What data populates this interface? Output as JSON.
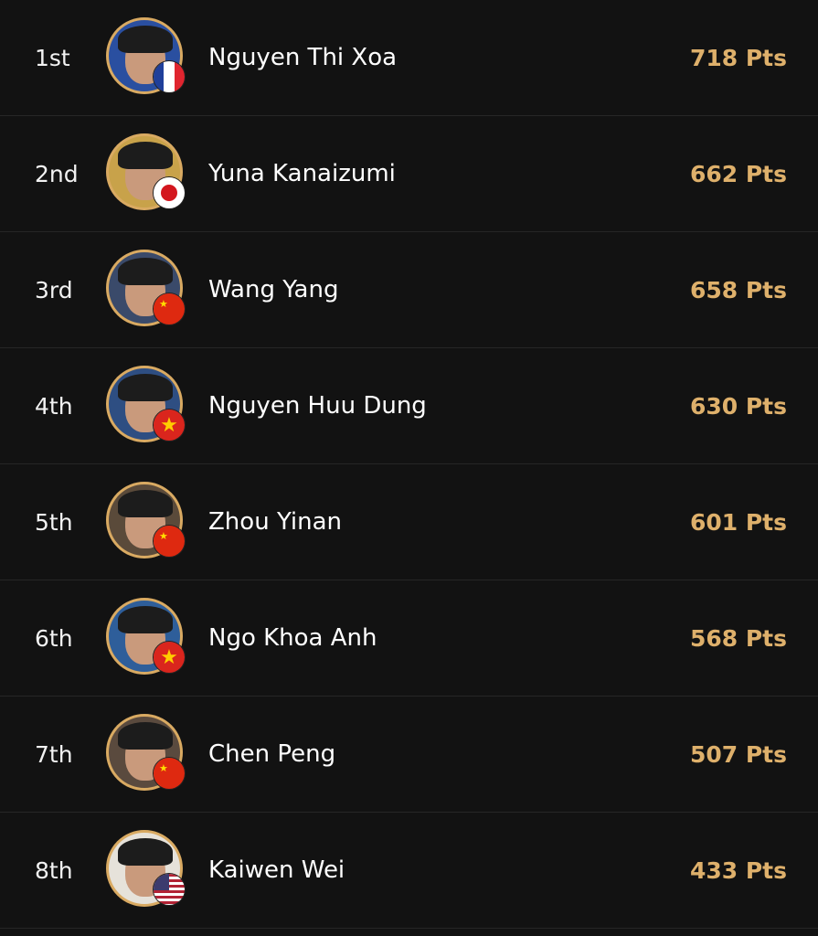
{
  "accent_color": "#deb06b",
  "players": [
    {
      "rank": "1st",
      "name": "Nguyen Thi Xoa",
      "points": "718 Pts",
      "flag": "france",
      "bg": "#2a4fa0"
    },
    {
      "rank": "2nd",
      "name": "Yuna Kanaizumi",
      "points": "662 Pts",
      "flag": "japan",
      "bg": "#c8a24a"
    },
    {
      "rank": "3rd",
      "name": "Wang Yang",
      "points": "658 Pts",
      "flag": "china",
      "bg": "#3a4a6a"
    },
    {
      "rank": "4th",
      "name": "Nguyen Huu Dung",
      "points": "630 Pts",
      "flag": "vietnam",
      "bg": "#2e4e82"
    },
    {
      "rank": "5th",
      "name": "Zhou Yinan",
      "points": "601 Pts",
      "flag": "china",
      "bg": "#5a4a3a"
    },
    {
      "rank": "6th",
      "name": "Ngo Khoa Anh",
      "points": "568 Pts",
      "flag": "vietnam",
      "bg": "#2e5e9a"
    },
    {
      "rank": "7th",
      "name": "Chen Peng",
      "points": "507 Pts",
      "flag": "china",
      "bg": "#5a4a3e"
    },
    {
      "rank": "8th",
      "name": "Kaiwen Wei",
      "points": "433 Pts",
      "flag": "usa",
      "bg": "#e6e2da"
    }
  ]
}
